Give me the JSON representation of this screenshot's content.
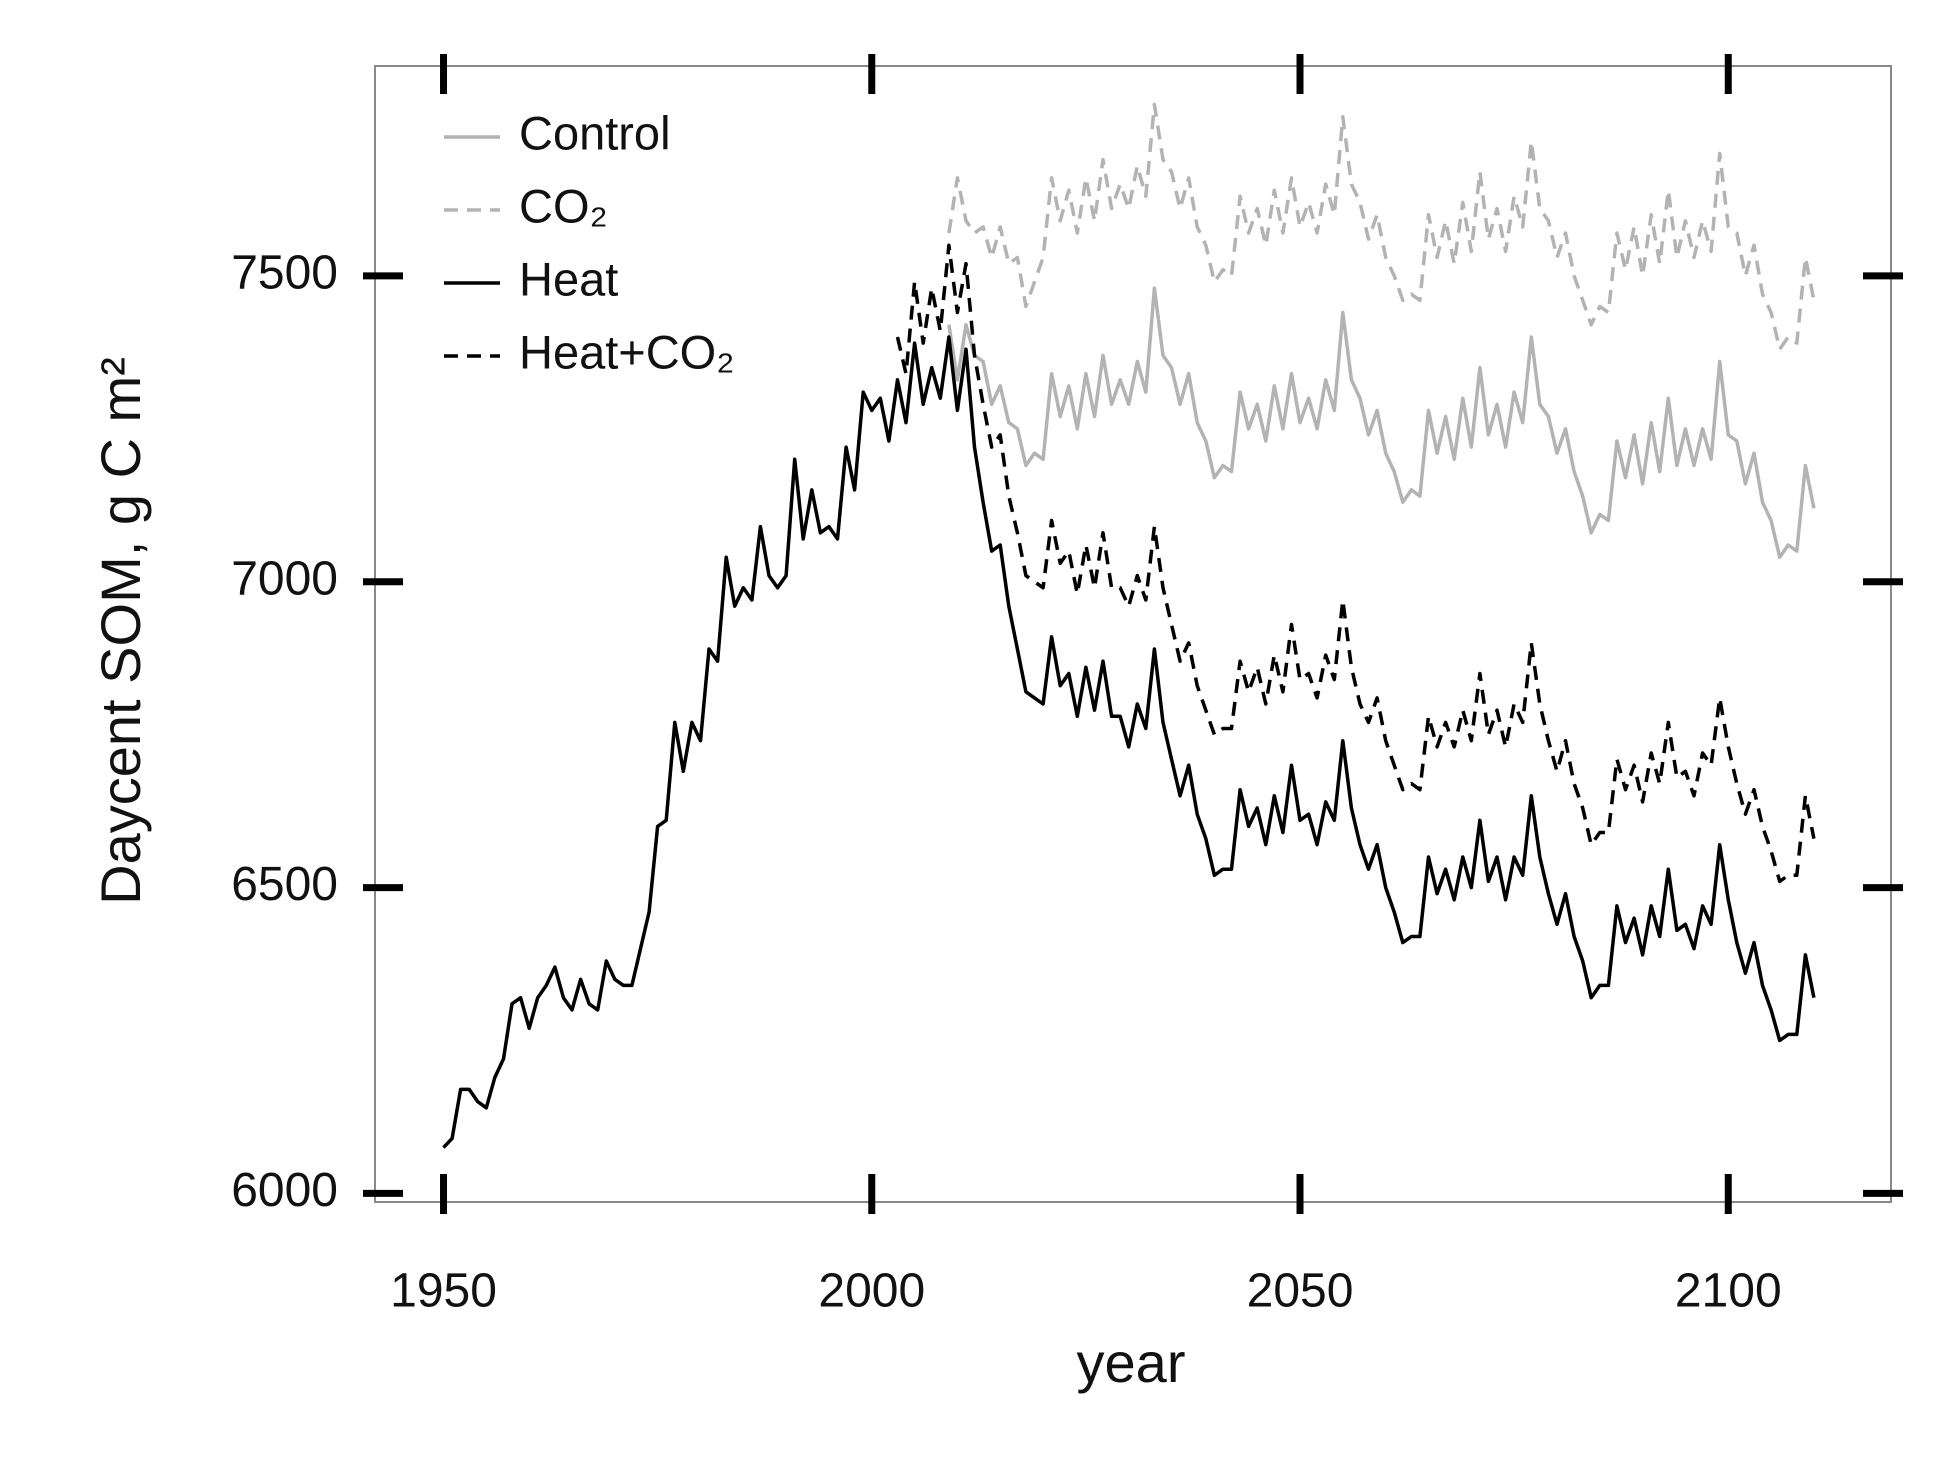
{
  "chart_data": {
    "type": "line",
    "xlabel": "year",
    "ylabel": "Daycent SOM, g C m²",
    "xlim": [
      1942,
      2119
    ],
    "ylim": [
      5986,
      7843
    ],
    "xticks": [
      1950,
      2000,
      2050,
      2100
    ],
    "yticks": [
      6000,
      6500,
      7000,
      7500
    ],
    "grid": false,
    "legend": "upper left",
    "x": [
      1950,
      1951,
      1952,
      1953,
      1954,
      1955,
      1956,
      1957,
      1958,
      1959,
      1960,
      1961,
      1962,
      1963,
      1964,
      1965,
      1966,
      1967,
      1968,
      1969,
      1970,
      1971,
      1972,
      1973,
      1974,
      1975,
      1976,
      1977,
      1978,
      1979,
      1980,
      1981,
      1982,
      1983,
      1984,
      1985,
      1986,
      1987,
      1988,
      1989,
      1990,
      1991,
      1992,
      1993,
      1994,
      1995,
      1996,
      1997,
      1998,
      1999,
      2000,
      2001,
      2002,
      2003,
      2004,
      2005,
      2006,
      2007,
      2008,
      2009,
      2010,
      2011,
      2012,
      2013,
      2014,
      2015,
      2016,
      2017,
      2018,
      2019,
      2020,
      2021,
      2022,
      2023,
      2024,
      2025,
      2026,
      2027,
      2028,
      2029,
      2030,
      2031,
      2032,
      2033,
      2034,
      2035,
      2036,
      2037,
      2038,
      2039,
      2040,
      2041,
      2042,
      2043,
      2044,
      2045,
      2046,
      2047,
      2048,
      2049,
      2050,
      2051,
      2052,
      2053,
      2054,
      2055,
      2056,
      2057,
      2058,
      2059,
      2060,
      2061,
      2062,
      2063,
      2064,
      2065,
      2066,
      2067,
      2068,
      2069,
      2070,
      2071,
      2072,
      2073,
      2074,
      2075,
      2076,
      2077,
      2078,
      2079,
      2080,
      2081,
      2082,
      2083,
      2084,
      2085,
      2086,
      2087,
      2088,
      2089,
      2090,
      2091,
      2092,
      2093,
      2094,
      2095,
      2096,
      2097,
      2098,
      2099,
      2100,
      2101,
      2102,
      2103,
      2104,
      2105,
      2106,
      2107,
      2108,
      2109,
      2110
    ],
    "series": [
      {
        "name": "Control",
        "color": "#b3b3b3",
        "dashed": false,
        "values": [
          null,
          null,
          null,
          null,
          null,
          null,
          null,
          null,
          null,
          null,
          null,
          null,
          null,
          null,
          null,
          null,
          null,
          null,
          null,
          null,
          null,
          null,
          null,
          null,
          null,
          null,
          null,
          null,
          null,
          null,
          null,
          null,
          null,
          null,
          null,
          null,
          null,
          null,
          null,
          null,
          null,
          null,
          null,
          null,
          null,
          null,
          null,
          null,
          null,
          null,
          null,
          null,
          null,
          null,
          null,
          null,
          null,
          null,
          null,
          7420,
          7330,
          7420,
          7370,
          7360,
          7290,
          7320,
          7260,
          7250,
          7190,
          7210,
          7200,
          7340,
          7270,
          7320,
          7250,
          7340,
          7270,
          7370,
          7290,
          7330,
          7290,
          7360,
          7310,
          7480,
          7370,
          7350,
          7290,
          7340,
          7260,
          7230,
          7170,
          7190,
          7180,
          7310,
          7250,
          7290,
          7230,
          7320,
          7250,
          7340,
          7260,
          7300,
          7250,
          7330,
          7280,
          7440,
          7330,
          7300,
          7240,
          7280,
          7210,
          7180,
          7130,
          7150,
          7140,
          7280,
          7210,
          7270,
          7200,
          7300,
          7220,
          7350,
          7240,
          7290,
          7220,
          7310,
          7260,
          7400,
          7290,
          7270,
          7210,
          7250,
          7180,
          7140,
          7080,
          7110,
          7100,
          7230,
          7170,
          7240,
          7160,
          7260,
          7180,
          7300,
          7190,
          7250,
          7190,
          7250,
          7200,
          7360,
          7240,
          7230,
          7160,
          7210,
          7130,
          7100,
          7040,
          7060,
          7050,
          7190,
          7120
        ]
      },
      {
        "name": "CO₂",
        "color": "#b3b3b3",
        "dashed": true,
        "values": [
          null,
          null,
          null,
          null,
          null,
          null,
          null,
          null,
          null,
          null,
          null,
          null,
          null,
          null,
          null,
          null,
          null,
          null,
          null,
          null,
          null,
          null,
          null,
          null,
          null,
          null,
          null,
          null,
          null,
          null,
          null,
          null,
          null,
          null,
          null,
          null,
          null,
          null,
          null,
          null,
          null,
          null,
          null,
          null,
          null,
          null,
          null,
          null,
          null,
          null,
          null,
          null,
          null,
          null,
          null,
          null,
          null,
          null,
          null,
          7570,
          7660,
          7590,
          7570,
          7580,
          7530,
          7580,
          7520,
          7530,
          7450,
          7490,
          7530,
          7660,
          7590,
          7640,
          7570,
          7660,
          7590,
          7690,
          7610,
          7650,
          7610,
          7680,
          7630,
          7780,
          7690,
          7670,
          7610,
          7660,
          7580,
          7550,
          7490,
          7510,
          7500,
          7630,
          7570,
          7610,
          7550,
          7640,
          7570,
          7660,
          7580,
          7620,
          7570,
          7650,
          7600,
          7760,
          7650,
          7620,
          7560,
          7600,
          7530,
          7500,
          7460,
          7470,
          7460,
          7600,
          7530,
          7590,
          7520,
          7620,
          7540,
          7670,
          7560,
          7610,
          7540,
          7630,
          7580,
          7720,
          7610,
          7590,
          7530,
          7570,
          7500,
          7460,
          7420,
          7450,
          7440,
          7570,
          7510,
          7580,
          7500,
          7600,
          7520,
          7640,
          7530,
          7590,
          7530,
          7590,
          7540,
          7700,
          7580,
          7570,
          7500,
          7550,
          7470,
          7440,
          7380,
          7400,
          7390,
          7530,
          7460
        ]
      },
      {
        "name": "Heat",
        "color": "#000000",
        "dashed": false,
        "values": [
          6075,
          6090,
          6170,
          6170,
          6150,
          6140,
          6190,
          6220,
          6310,
          6320,
          6270,
          6320,
          6340,
          6370,
          6320,
          6300,
          6350,
          6310,
          6300,
          6380,
          6350,
          6340,
          6340,
          6400,
          6460,
          6600,
          6610,
          6770,
          6690,
          6770,
          6740,
          6890,
          6870,
          7040,
          6960,
          6990,
          6970,
          7090,
          7010,
          6990,
          7010,
          7200,
          7070,
          7150,
          7080,
          7090,
          7070,
          7220,
          7150,
          7310,
          7280,
          7300,
          7230,
          7330,
          7260,
          7390,
          7290,
          7350,
          7300,
          7400,
          7280,
          7380,
          7220,
          7130,
          7050,
          7060,
          6960,
          6890,
          6820,
          6810,
          6800,
          6910,
          6830,
          6850,
          6780,
          6860,
          6790,
          6870,
          6780,
          6780,
          6730,
          6800,
          6760,
          6890,
          6770,
          6710,
          6650,
          6700,
          6620,
          6580,
          6520,
          6530,
          6530,
          6660,
          6600,
          6630,
          6570,
          6650,
          6590,
          6700,
          6610,
          6620,
          6570,
          6640,
          6610,
          6740,
          6630,
          6570,
          6530,
          6570,
          6500,
          6460,
          6410,
          6420,
          6420,
          6550,
          6490,
          6530,
          6480,
          6550,
          6500,
          6610,
          6510,
          6550,
          6480,
          6550,
          6520,
          6650,
          6550,
          6490,
          6440,
          6490,
          6420,
          6380,
          6320,
          6340,
          6340,
          6470,
          6410,
          6450,
          6390,
          6470,
          6420,
          6530,
          6430,
          6440,
          6400,
          6470,
          6440,
          6570,
          6480,
          6410,
          6360,
          6410,
          6340,
          6300,
          6250,
          6260,
          6260,
          6390,
          6320
        ]
      },
      {
        "name": "Heat+CO₂",
        "color": "#000000",
        "dashed": true,
        "values": [
          null,
          null,
          null,
          null,
          null,
          null,
          null,
          null,
          null,
          null,
          null,
          null,
          null,
          null,
          null,
          null,
          null,
          null,
          null,
          null,
          null,
          null,
          null,
          null,
          null,
          null,
          null,
          null,
          null,
          null,
          null,
          null,
          null,
          null,
          null,
          null,
          null,
          null,
          null,
          null,
          null,
          null,
          null,
          null,
          null,
          null,
          null,
          null,
          null,
          null,
          null,
          null,
          null,
          7400,
          7340,
          7490,
          7390,
          7480,
          7410,
          7550,
          7440,
          7520,
          7370,
          7290,
          7220,
          7240,
          7140,
          7080,
          7010,
          7000,
          6990,
          7100,
          7030,
          7050,
          6980,
          7060,
          6990,
          7080,
          6990,
          6990,
          6960,
          7010,
          6970,
          7090,
          6990,
          6930,
          6870,
          6900,
          6830,
          6790,
          6750,
          6760,
          6760,
          6870,
          6820,
          6860,
          6800,
          6880,
          6820,
          6930,
          6840,
          6850,
          6810,
          6880,
          6840,
          6970,
          6860,
          6800,
          6770,
          6810,
          6740,
          6700,
          6660,
          6670,
          6660,
          6780,
          6730,
          6770,
          6730,
          6790,
          6740,
          6850,
          6750,
          6790,
          6730,
          6800,
          6770,
          6900,
          6800,
          6740,
          6690,
          6740,
          6670,
          6630,
          6570,
          6590,
          6590,
          6710,
          6660,
          6700,
          6640,
          6720,
          6670,
          6770,
          6680,
          6690,
          6650,
          6720,
          6700,
          6810,
          6730,
          6670,
          6620,
          6660,
          6600,
          6560,
          6510,
          6520,
          6520,
          6650,
          6580
        ]
      }
    ]
  }
}
